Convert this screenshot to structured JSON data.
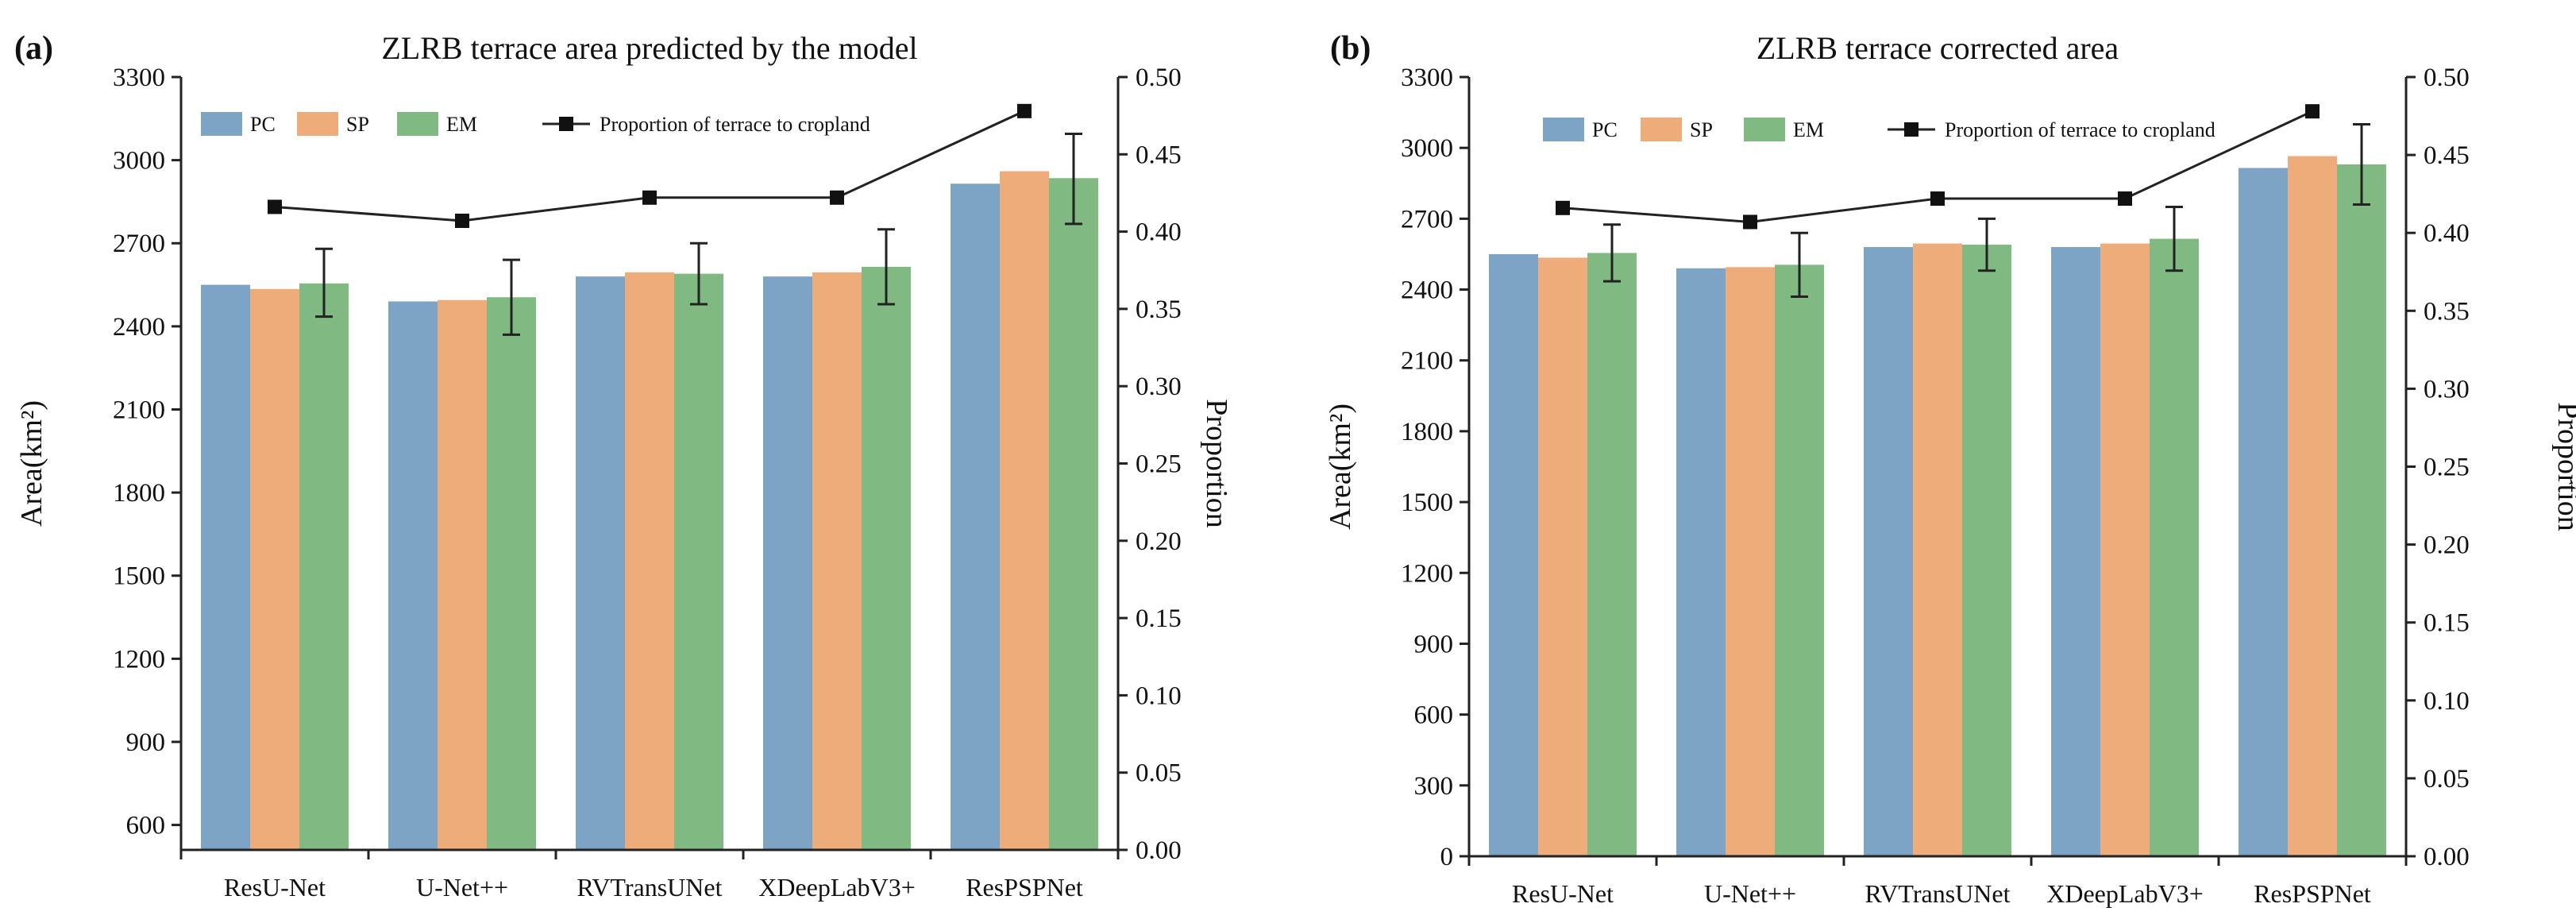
{
  "chart_data": [
    {
      "type": "bar",
      "panel_label": "(a)",
      "title": "ZLRB terrace area predicted by the model",
      "xlabel": "",
      "ylabel": "Area(km²)",
      "ylabel_right": "Proportion",
      "categories": [
        "ResU-Net",
        "U-Net++",
        "RVTransUNet",
        "XDeepLabV3+",
        "ResPSPNet"
      ],
      "ylim": [
        510,
        3300
      ],
      "yticks": [
        "600",
        "900",
        "1200",
        "1500",
        "1800",
        "2100",
        "2400",
        "2700",
        "3000",
        "3300"
      ],
      "ylim_right": [
        0,
        0.5
      ],
      "yticks_right": [
        "0.00",
        "0.05",
        "0.10",
        "0.15",
        "0.20",
        "0.25",
        "0.30",
        "0.35",
        "0.40",
        "0.45",
        "0.50"
      ],
      "series": [
        {
          "name": "PC",
          "color": "#7da3c5",
          "values": [
            2550,
            2490,
            2580,
            2580,
            2915
          ]
        },
        {
          "name": "SP",
          "color": "#eeac7a",
          "values": [
            2535,
            2495,
            2595,
            2595,
            2960
          ]
        },
        {
          "name": "EM",
          "color": "#80ba82",
          "values": [
            2555,
            2505,
            2590,
            2615,
            2935
          ],
          "error": [
            [
              2435,
              2680
            ],
            [
              2370,
              2640
            ],
            [
              2480,
              2700
            ],
            [
              2480,
              2750
            ],
            [
              2770,
              3095
            ]
          ]
        }
      ],
      "line_series": {
        "name": "Proportion of terrace to cropland",
        "axis": "right",
        "values": [
          0.416,
          0.407,
          0.422,
          0.422,
          0.478
        ]
      },
      "legend": {
        "position": "top",
        "entries": [
          "PC",
          "SP",
          "EM",
          "Proportion of terrace to cropland"
        ]
      }
    },
    {
      "type": "bar",
      "panel_label": "(b)",
      "title": "ZLRB terrace corrected area",
      "xlabel": "",
      "ylabel": "Area(km²)",
      "ylabel_right": "Proportion",
      "categories": [
        "ResU-Net",
        "U-Net++",
        "RVTransUNet",
        "XDeepLabV3+",
        "ResPSPNet"
      ],
      "ylim": [
        0,
        3300
      ],
      "yticks": [
        "0",
        "300",
        "600",
        "900",
        "1200",
        "1500",
        "1800",
        "2100",
        "2400",
        "2700",
        "3000",
        "3300"
      ],
      "ylim_right": [
        0,
        0.5
      ],
      "yticks_right": [
        "0.00",
        "0.05",
        "0.10",
        "0.15",
        "0.20",
        "0.25",
        "0.30",
        "0.35",
        "0.40",
        "0.45",
        "0.50"
      ],
      "series": [
        {
          "name": "PC",
          "color": "#7da3c5",
          "values": [
            2550,
            2490,
            2580,
            2580,
            2915
          ]
        },
        {
          "name": "SP",
          "color": "#eeac7a",
          "values": [
            2535,
            2495,
            2595,
            2595,
            2965
          ]
        },
        {
          "name": "EM",
          "color": "#80ba82",
          "values": [
            2555,
            2505,
            2590,
            2615,
            2930
          ],
          "error": [
            [
              2435,
              2675
            ],
            [
              2370,
              2640
            ],
            [
              2480,
              2700
            ],
            [
              2480,
              2750
            ],
            [
              2760,
              3100
            ]
          ]
        }
      ],
      "line_series": {
        "name": "Proportion of terrace to cropland",
        "axis": "right",
        "values": [
          0.416,
          0.407,
          0.422,
          0.422,
          0.478
        ]
      },
      "legend": {
        "position": "top",
        "entries": [
          "PC",
          "SP",
          "EM",
          "Proportion of terrace to cropland"
        ]
      }
    }
  ]
}
